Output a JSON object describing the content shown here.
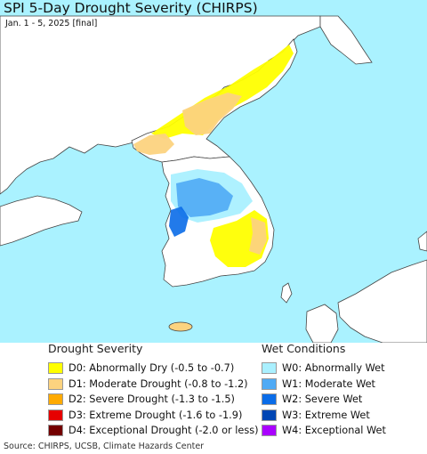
{
  "title": "SPI 5-Day Drought Severity (CHIRPS)",
  "subtitle": "Jan. 1 - 5, 2025 [final]",
  "colors": {
    "sea": "#aaf2ff",
    "land": "#ffffff",
    "border": "#444444",
    "abnormally_dry": "#ffff00",
    "moderate_drought": "#fcd37f",
    "severe_drought": "#ffaa00",
    "extreme_drought": "#e60000",
    "exceptional_drought": "#730000",
    "abnormally_wet": "#aaf0ff",
    "moderately_wet": "#4faaf5",
    "severely_wet": "#0a6ce8",
    "extremely_wet": "#0046b4",
    "exceptionally_wet": "#aa00ff"
  },
  "legend": {
    "drought": {
      "title": "Drought Severity",
      "items": [
        {
          "label": "D0: Abnormally Dry (-0.5 to -0.7)",
          "color": "#ffff00"
        },
        {
          "label": "D1: Moderate Drought (-0.8 to -1.2)",
          "color": "#fcd37f"
        },
        {
          "label": "D2: Severe Drought (-1.3 to -1.5)",
          "color": "#ffaa00"
        },
        {
          "label": "D3: Extreme Drought (-1.6 to -1.9)",
          "color": "#e60000"
        },
        {
          "label": "D4: Exceptional Drought (-2.0 or less)",
          "color": "#730000"
        }
      ]
    },
    "wet": {
      "title": "Wet Conditions",
      "items": [
        {
          "label": "W0: Abnormally Wet",
          "color": "#aaf0ff"
        },
        {
          "label": "W1: Moderate Wet",
          "color": "#4faaf5"
        },
        {
          "label": "W2: Severe Wet",
          "color": "#0a6ce8"
        },
        {
          "label": "W3: Extreme Wet",
          "color": "#0046b4"
        },
        {
          "label": "W4: Exceptional Wet",
          "color": "#aa00ff"
        }
      ]
    }
  },
  "source": "Source: CHIRPS, UCSB, Climate Hazards Center"
}
